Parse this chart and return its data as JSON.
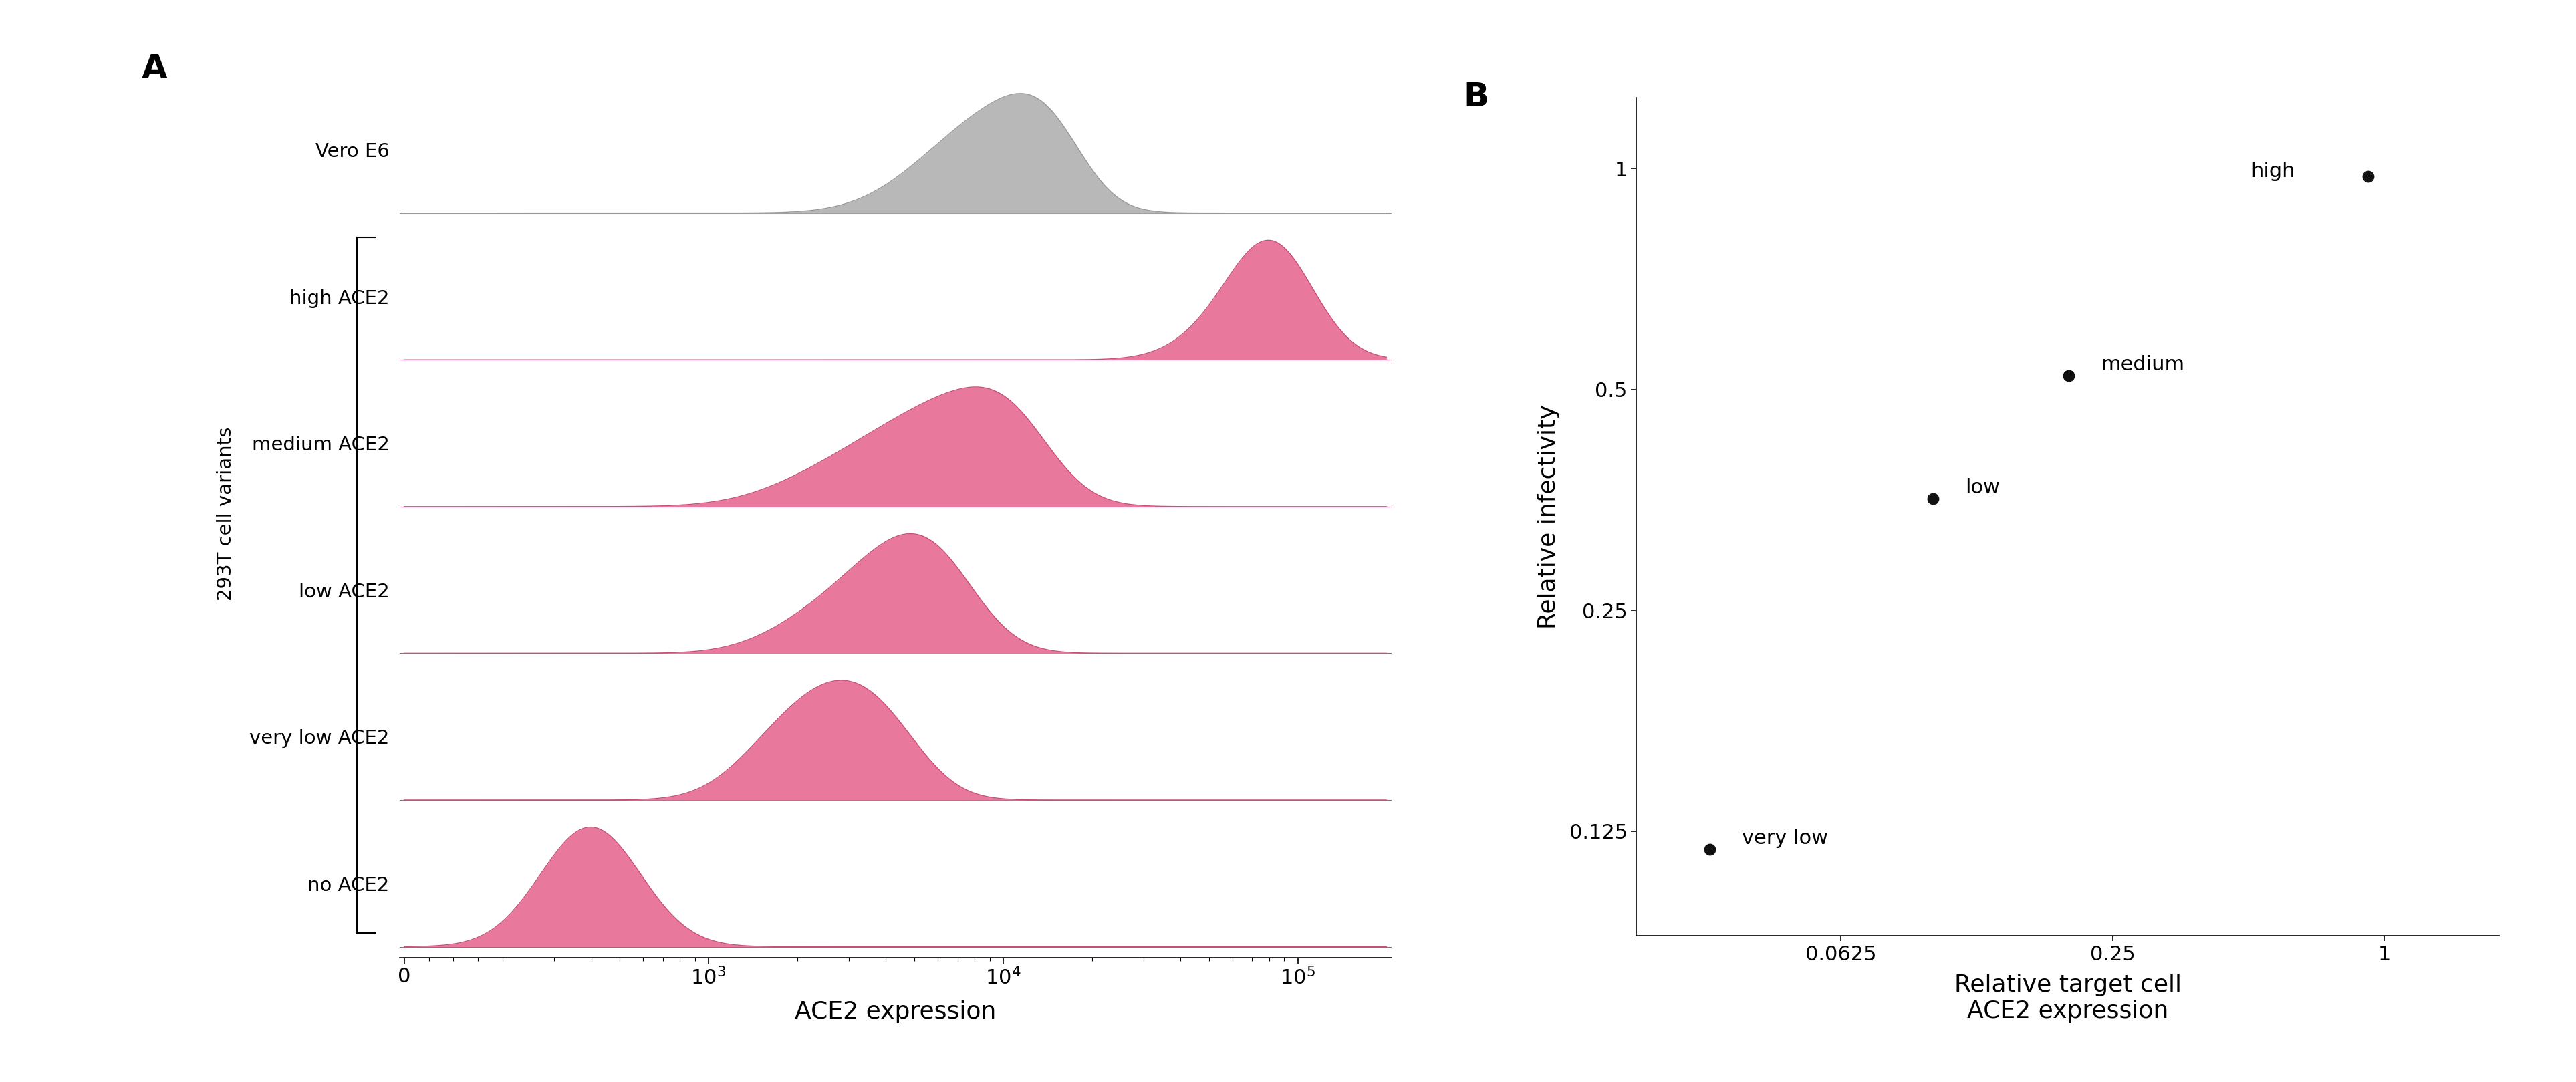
{
  "panel_a_label": "A",
  "panel_b_label": "B",
  "flow_traces": [
    {
      "label": "Vero E6",
      "color_fill": "#b8b8b8",
      "color_edge": "#999999",
      "is_gray": true
    },
    {
      "label": "high ACE2",
      "color_fill": "#e8789c",
      "color_edge": "#c85078",
      "is_gray": false
    },
    {
      "label": "medium ACE2",
      "color_fill": "#e8789c",
      "color_edge": "#c85078",
      "is_gray": false
    },
    {
      "label": "low ACE2",
      "color_fill": "#e8789c",
      "color_edge": "#c85078",
      "is_gray": false
    },
    {
      "label": "very low ACE2",
      "color_fill": "#e8789c",
      "color_edge": "#c85078",
      "is_gray": false
    },
    {
      "label": "no ACE2",
      "color_fill": "#e8789c",
      "color_edge": "#c85078",
      "is_gray": false
    }
  ],
  "flow_xlabel": "ACE2 expression",
  "flow_ylabel": "293T cell variants",
  "scatter_x": [
    0.032,
    0.1,
    0.2,
    0.92
  ],
  "scatter_y": [
    0.118,
    0.355,
    0.522,
    0.975
  ],
  "scatter_labels": [
    "very low",
    "low",
    "medium",
    "high"
  ],
  "scatter_xlabel": "Relative target cell\nACE2 expression",
  "scatter_ylabel": "Relative infectivity",
  "scatter_xticks": [
    0.0625,
    0.25,
    1.0
  ],
  "scatter_yticks": [
    0.125,
    0.25,
    0.5,
    1.0
  ],
  "scatter_xtick_labels": [
    "0.0625",
    "0.25",
    "1"
  ],
  "scatter_ytick_labels": [
    "0.125",
    "0.25",
    "0.5",
    "1"
  ],
  "dot_color": "#111111",
  "dot_size": 140
}
